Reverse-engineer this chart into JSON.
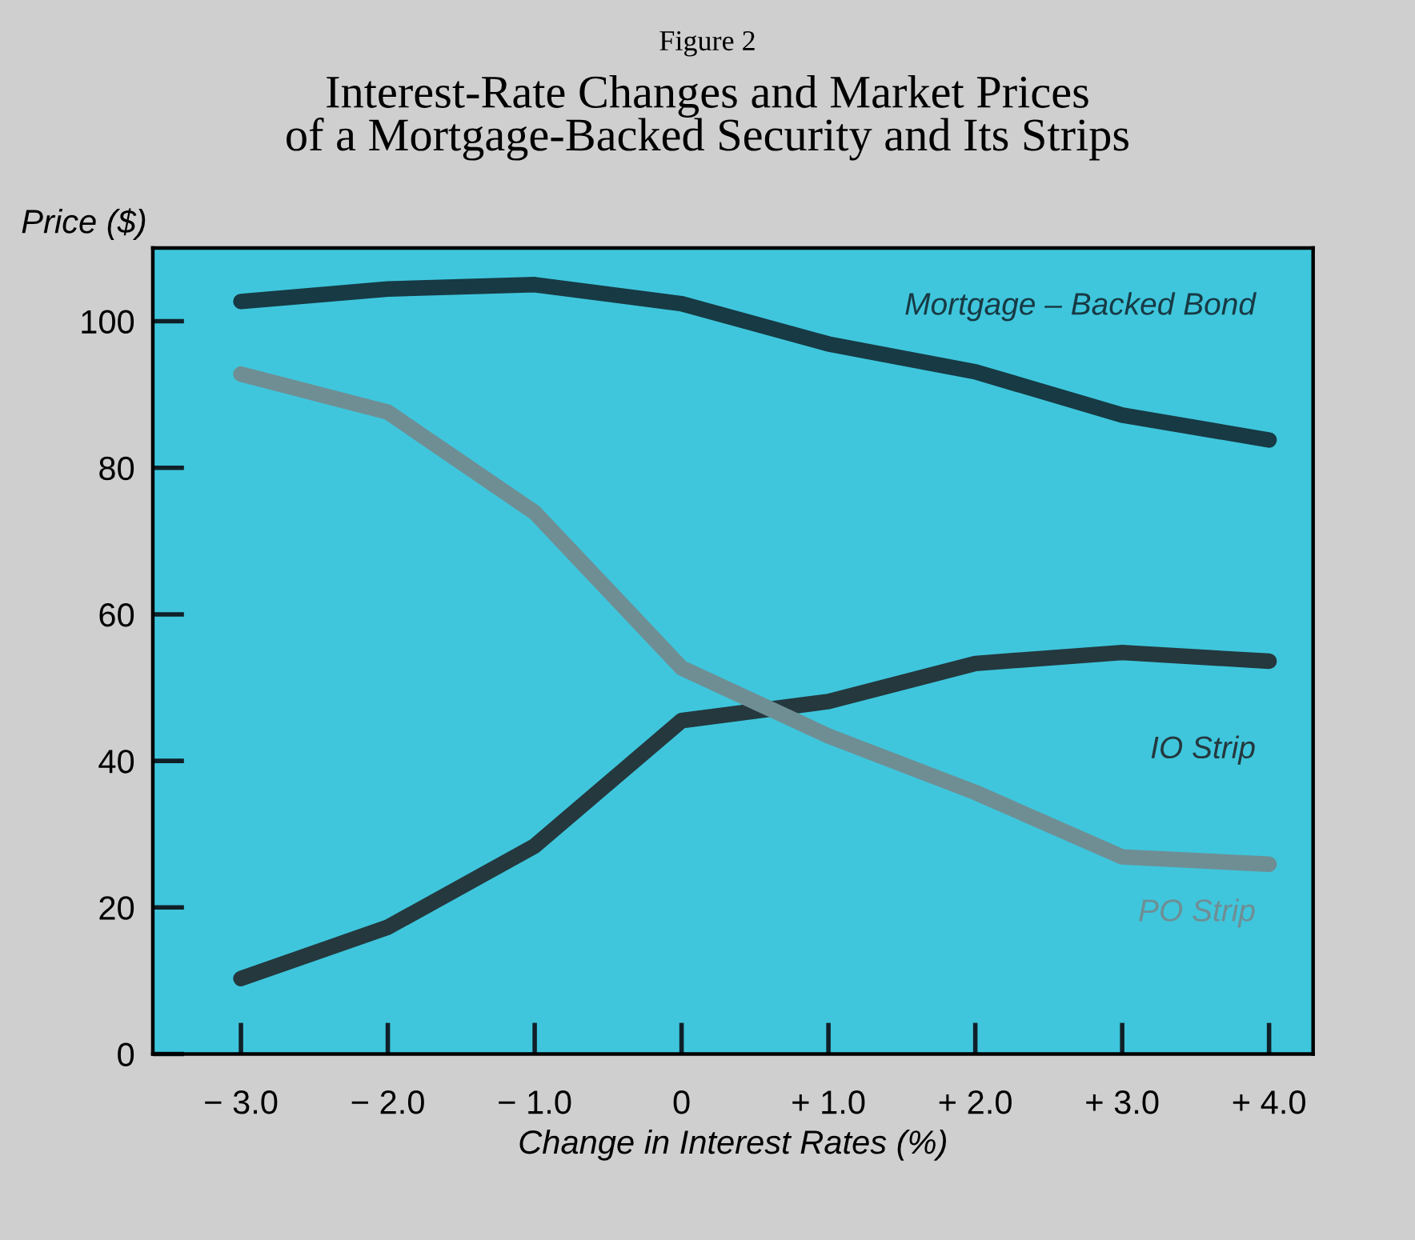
{
  "chart_data": {
    "type": "line",
    "subtitle": "Figure 2",
    "title": "Interest-Rate Changes and Market Prices\nof a Mortgage-Backed Security and Its Strips",
    "xlabel": "Change in Interest Rates (%)",
    "ylabel": "Price ($)",
    "x": [
      -3,
      -2,
      -1,
      0,
      1,
      2,
      3,
      4
    ],
    "series": [
      {
        "name": "Mortgage – Backed Bond",
        "color": "#173a44",
        "values": [
          102.7,
          104.4,
          105,
          102.4,
          96.9,
          93.1,
          87.2,
          83.8
        ]
      },
      {
        "name": "IO Strip",
        "color": "#24383e",
        "values": [
          10.3,
          17.3,
          28.4,
          45.5,
          48.1,
          53.3,
          54.8,
          53.6
        ]
      },
      {
        "name": "PO Strip",
        "color": "#6f8e94",
        "values": [
          92.8,
          87.6,
          73.9,
          52.7,
          43.4,
          35.7,
          26.9,
          25.9
        ]
      }
    ],
    "xlim": [
      -3.6,
      4.3
    ],
    "ylim": [
      0,
      110
    ],
    "xticks": [
      {
        "value": -3,
        "label": "− 3.0"
      },
      {
        "value": -2,
        "label": "− 2.0"
      },
      {
        "value": -1,
        "label": "− 1.0"
      },
      0,
      {
        "value": 1,
        "label": "+ 1.0"
      },
      {
        "value": 2,
        "label": "+ 2.0"
      },
      {
        "value": 3,
        "label": "+ 3.0"
      },
      {
        "value": 4,
        "label": "+ 4.0"
      }
    ],
    "yticks": [
      0,
      20,
      40,
      60,
      80,
      100
    ],
    "grid": false,
    "legend": false,
    "marker": "none",
    "line_style": "solid"
  }
}
